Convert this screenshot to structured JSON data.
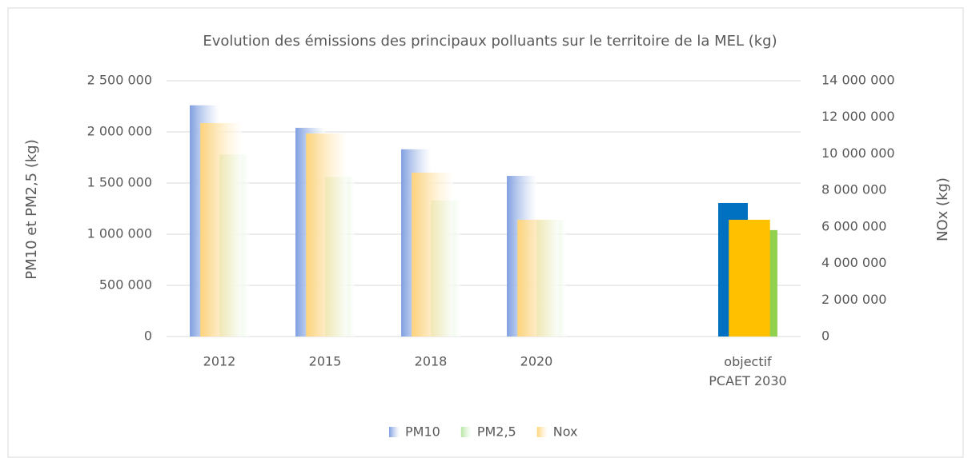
{
  "chart_data": {
    "type": "bar",
    "title": "Evolution des émissions des principaux polluants sur le territoire de la MEL (kg)",
    "ylabel": "PM10 et PM2,5 (kg)",
    "y2label": "NOx (kg)",
    "categories": [
      "2012",
      "2015",
      "2018",
      "2020",
      null,
      "objectif PCAET 2030"
    ],
    "series": [
      {
        "name": "PM10",
        "color": "#7f9fe0",
        "highlight_color": "#0070c0",
        "values": [
          2260000,
          2040000,
          1830000,
          1570000,
          null,
          1305000
        ]
      },
      {
        "name": "PM2,5",
        "color": "#b6e6a4",
        "highlight_color": "#92d050",
        "values": [
          1780000,
          1560000,
          1330000,
          1140000,
          null,
          1040000
        ]
      },
      {
        "name": "Nox",
        "color": "#ffd47a",
        "highlight_color": "#ffc000",
        "axis": "y2",
        "values": [
          11680000,
          11110000,
          8970000,
          6390000,
          null,
          6390000
        ]
      }
    ],
    "ylim": [
      0,
      2500000
    ],
    "yticks": [
      0,
      {
        "value": 500000,
        "label": "500 000"
      },
      {
        "value": 1000000,
        "label": "1 000 000"
      },
      {
        "value": 1500000,
        "label": "1 500 000"
      },
      {
        "value": 2000000,
        "label": "2 000 000"
      },
      {
        "value": 2500000,
        "label": "2 500 000"
      }
    ],
    "y2lim": [
      0,
      14000000
    ],
    "y2ticks": [
      0,
      {
        "value": 2000000,
        "label": "2 000 000"
      },
      {
        "value": 4000000,
        "label": "4 000 000"
      },
      {
        "value": 6000000,
        "label": "6 000 000"
      },
      {
        "value": 8000000,
        "label": "8 000 000"
      },
      {
        "value": 10000000,
        "label": "10 000 000"
      },
      {
        "value": 12000000,
        "label": "12 000 000"
      },
      {
        "value": 14000000,
        "label": "14 000 000"
      }
    ],
    "grid": true,
    "legend": "bottom"
  }
}
